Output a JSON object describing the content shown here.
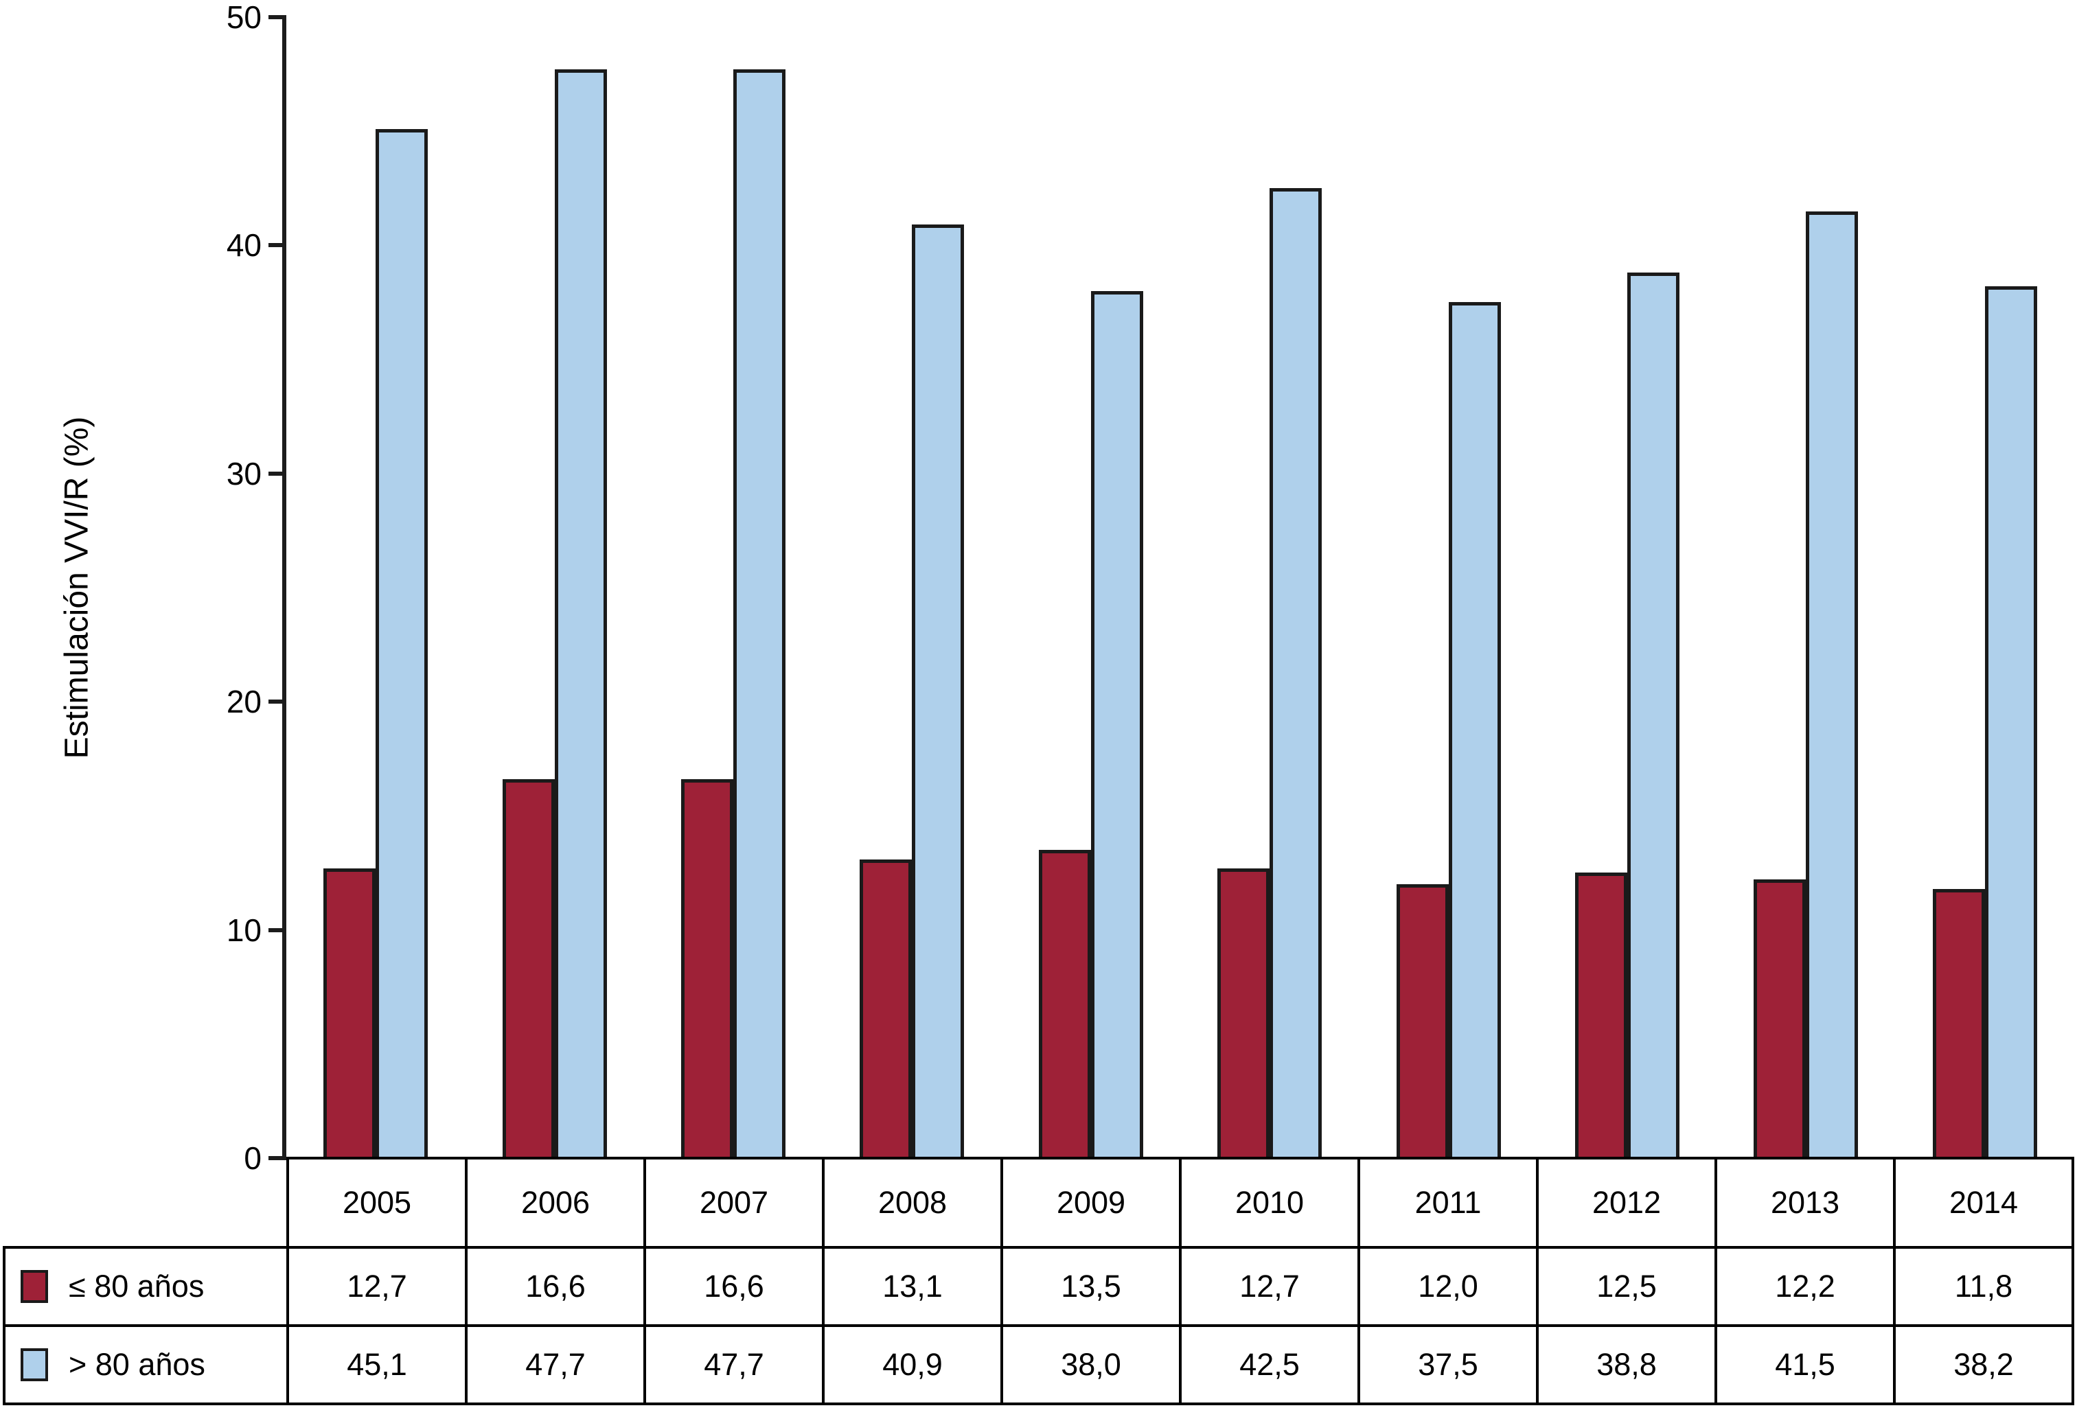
{
  "chart_data": {
    "type": "bar",
    "title": "",
    "ylabel": "Estimulación VVI/R (%)",
    "xlabel": "",
    "ylim": [
      0,
      50
    ],
    "yticks": [
      0,
      10,
      20,
      30,
      40,
      50
    ],
    "grid": false,
    "legend_position": "table-rows-bottom-left",
    "categories": [
      "2005",
      "2006",
      "2007",
      "2008",
      "2009",
      "2010",
      "2011",
      "2012",
      "2013",
      "2014"
    ],
    "series": [
      {
        "name": "≤ 80 años",
        "color": "#9e2137",
        "values": [
          12.7,
          16.6,
          16.6,
          13.1,
          13.5,
          12.7,
          12.0,
          12.5,
          12.2,
          11.8
        ],
        "display_values": [
          "12,7",
          "16,6",
          "16,6",
          "13,1",
          "13,5",
          "12,7",
          "12,0",
          "12,5",
          "12,2",
          "11,8"
        ]
      },
      {
        "name": "> 80 años",
        "color": "#afd0eb",
        "values": [
          45.1,
          47.7,
          47.7,
          40.9,
          38.0,
          42.5,
          37.5,
          38.8,
          41.5,
          38.2
        ],
        "display_values": [
          "45,1",
          "47,7",
          "47,7",
          "40,9",
          "38,0",
          "42,5",
          "37,5",
          "38,8",
          "41,5",
          "38,2"
        ]
      }
    ],
    "bar_border_color": "#1a1a1a",
    "axis_color": "#1c1c1c"
  }
}
